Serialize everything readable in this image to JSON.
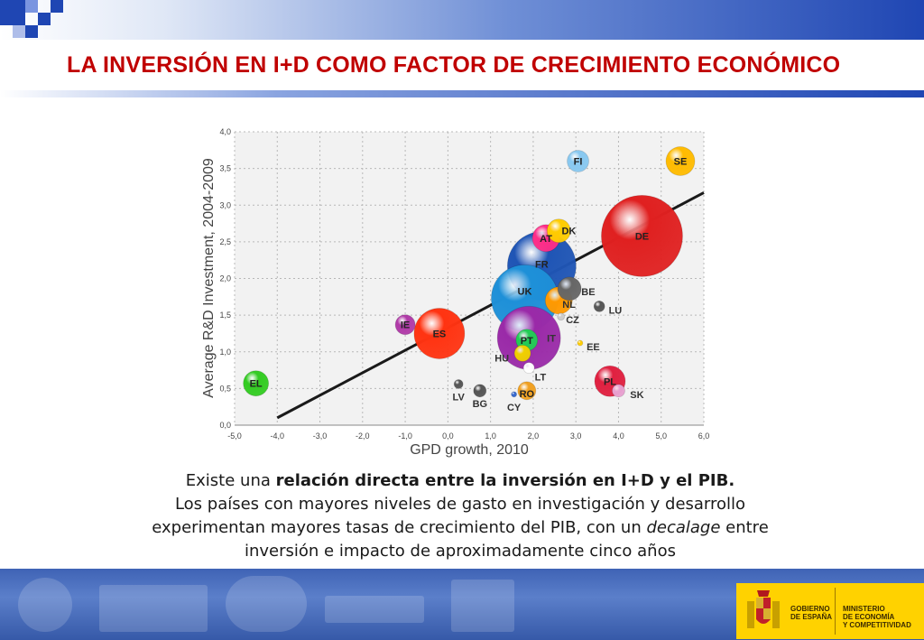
{
  "slide": {
    "title": "LA INVERSIÓN EN I+D COMO FACTOR DE CRECIMIENTO ECONÓMICO",
    "caption": {
      "line1_prefix": "Existe una ",
      "line1_bold": "relación directa entre la inversión en I+D y el PIB.",
      "line2": "Los países con mayores niveles de gasto en investigación y desarrollo",
      "line3_prefix": "experimentan mayores tasas de crecimiento del PIB, con un ",
      "line3_italic": "decalage",
      "line3_suffix": " entre",
      "line4": "inversión e impacto de aproximadamente cinco años"
    }
  },
  "logo": {
    "line1": "GOBIERNO",
    "line2": "DE ESPAÑA",
    "ministry1": "MINISTERIO",
    "ministry2": "DE ECONOMÍA",
    "ministry3": "Y COMPETITIVIDAD"
  },
  "colors": {
    "title": "#c00000",
    "header_blue": "#1f46b3",
    "footer_blue": "#4a6fc0",
    "logo_yellow": "#ffd200"
  },
  "chart_data": {
    "type": "scatter",
    "xlabel": "GPD growth, 2010",
    "ylabel": "Average R&D Investment, 2004-2009",
    "xlim": [
      -5.0,
      6.0
    ],
    "ylim": [
      0.0,
      4.0
    ],
    "xticks": [
      "-5,0",
      "-4,0",
      "-3,0",
      "-2,0",
      "-1,0",
      "0,0",
      "1,0",
      "2,0",
      "3,0",
      "4,0",
      "5,0",
      "6,0"
    ],
    "yticks": [
      "0,0",
      "0,5",
      "1,0",
      "1,5",
      "2,0",
      "2,5",
      "3,0",
      "3,5",
      "4,0"
    ],
    "grid": true,
    "trendline": {
      "x": [
        -4.0,
        6.0
      ],
      "y": [
        0.1,
        3.17
      ]
    },
    "points": [
      {
        "label": "EL",
        "x": -4.5,
        "y": 0.57,
        "size": 14,
        "color": "#33cc22"
      },
      {
        "label": "IE",
        "x": -1.0,
        "y": 1.37,
        "size": 11,
        "color": "#b03aa8"
      },
      {
        "label": "ES",
        "x": -0.2,
        "y": 1.25,
        "size": 28,
        "color": "#ff3311"
      },
      {
        "label": "LV",
        "x": 0.25,
        "y": 0.56,
        "size": 5,
        "color": "#555555"
      },
      {
        "label": "BG",
        "x": 0.75,
        "y": 0.47,
        "size": 7,
        "color": "#555555"
      },
      {
        "label": "CY",
        "x": 1.55,
        "y": 0.42,
        "size": 3,
        "color": "#3366cc"
      },
      {
        "label": "RO",
        "x": 1.85,
        "y": 0.47,
        "size": 10,
        "color": "#f0a020"
      },
      {
        "label": "LT",
        "x": 1.9,
        "y": 0.78,
        "size": 6,
        "color": "#ffffff"
      },
      {
        "label": "HU",
        "x": 1.75,
        "y": 0.98,
        "size": 9,
        "color": "#f0d000"
      },
      {
        "label": "IT",
        "x": 1.9,
        "y": 1.19,
        "size": 35,
        "color": "#9a2aa8"
      },
      {
        "label": "PT",
        "x": 1.85,
        "y": 1.16,
        "size": 12,
        "color": "#22cc55"
      },
      {
        "label": "CZ",
        "x": 2.65,
        "y": 1.48,
        "size": 4,
        "color": "#cccccc"
      },
      {
        "label": "NL",
        "x": 2.6,
        "y": 1.7,
        "size": 15,
        "color": "#ff9900"
      },
      {
        "label": "BE",
        "x": 2.85,
        "y": 1.86,
        "size": 13,
        "color": "#666666"
      },
      {
        "label": "UK",
        "x": 1.8,
        "y": 1.73,
        "size": 37,
        "color": "#1e90d8"
      },
      {
        "label": "FR",
        "x": 2.2,
        "y": 2.17,
        "size": 38,
        "color": "#1f55b5"
      },
      {
        "label": "AT",
        "x": 2.3,
        "y": 2.55,
        "size": 15,
        "color": "#ff2d88"
      },
      {
        "label": "DK",
        "x": 2.6,
        "y": 2.65,
        "size": 13,
        "color": "#ffcc00"
      },
      {
        "label": "DE",
        "x": 4.55,
        "y": 2.58,
        "size": 45,
        "color": "#e02020"
      },
      {
        "label": "FI",
        "x": 3.05,
        "y": 3.6,
        "size": 12,
        "color": "#88c8f0"
      },
      {
        "label": "SE",
        "x": 5.45,
        "y": 3.6,
        "size": 16,
        "color": "#ffbb00"
      },
      {
        "label": "LU",
        "x": 3.55,
        "y": 1.62,
        "size": 6,
        "color": "#555555"
      },
      {
        "label": "EE",
        "x": 3.1,
        "y": 1.12,
        "size": 3,
        "color": "#ffcc00"
      },
      {
        "label": "PL",
        "x": 3.8,
        "y": 0.6,
        "size": 17,
        "color": "#e02040"
      },
      {
        "label": "SK",
        "x": 4.0,
        "y": 0.47,
        "size": 7,
        "color": "#e8a0d0"
      }
    ]
  }
}
